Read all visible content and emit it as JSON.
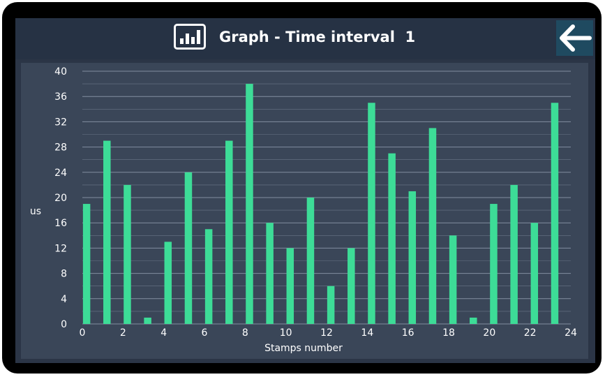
{
  "header": {
    "title": "Graph - Time interval  1",
    "icon": "bar-chart-icon",
    "back_icon": "arrow-left-icon"
  },
  "colors": {
    "bar": "#3ddc97",
    "grid": "#8a96a8",
    "text": "#ffffff",
    "panel": "#3a4658",
    "header": "#263244",
    "back_button": "#1f4a60"
  },
  "chart_data": {
    "type": "bar",
    "title": "",
    "xlabel": "Stamps number",
    "ylabel": "us",
    "xlim": [
      0,
      24
    ],
    "ylim": [
      0,
      40
    ],
    "xticks": [
      0,
      2,
      4,
      6,
      8,
      10,
      12,
      14,
      16,
      18,
      20,
      22,
      24
    ],
    "yticks": [
      0,
      4,
      8,
      12,
      16,
      20,
      24,
      28,
      32,
      36,
      40
    ],
    "grid": true,
    "x": [
      0,
      1,
      2,
      3,
      4,
      5,
      6,
      7,
      8,
      9,
      10,
      11,
      12,
      13,
      14,
      15,
      16,
      17,
      18,
      19,
      20,
      21,
      22,
      23
    ],
    "values": [
      19,
      29,
      22,
      1,
      13,
      24,
      15,
      29,
      38,
      16,
      12,
      20,
      6,
      12,
      35,
      27,
      21,
      31,
      14,
      1,
      19,
      22,
      16,
      35
    ]
  }
}
